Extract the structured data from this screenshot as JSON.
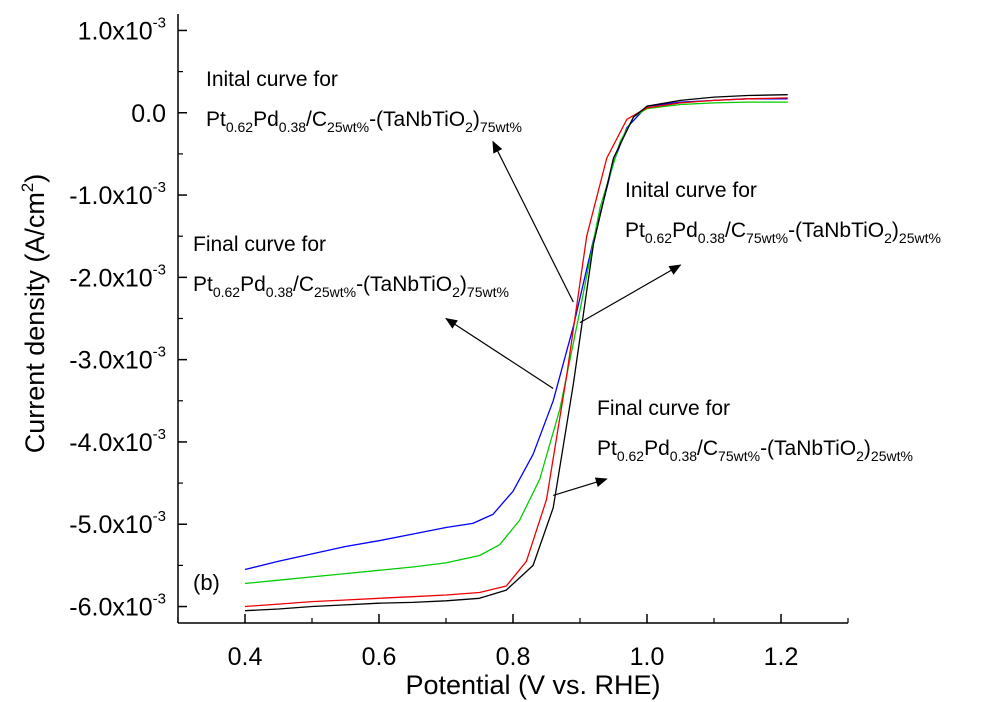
{
  "chart_data": {
    "type": "line",
    "title": "",
    "panel_label": "(b)",
    "xlabel": "Potential (V vs. RHE)",
    "ylabel": "Current density (A/cm²)",
    "ylabel_parts": {
      "base": "Current density (A/cm",
      "sup": "2",
      "tail": ")"
    },
    "xlim": [
      0.3,
      1.3
    ],
    "ylim": [
      -6.2,
      1.2
    ],
    "y_unit_exponent": -3,
    "x_ticks": [
      {
        "value": 0.4,
        "label": "0.4"
      },
      {
        "value": 0.6,
        "label": "0.6"
      },
      {
        "value": 0.8,
        "label": "0.8"
      },
      {
        "value": 1.0,
        "label": "1.0"
      },
      {
        "value": 1.2,
        "label": "1.2"
      }
    ],
    "y_ticks": [
      {
        "value": 1.0,
        "label": "1.0x10",
        "exp": "-3"
      },
      {
        "value": 0.0,
        "label": "0.0",
        "exp": ""
      },
      {
        "value": -1.0,
        "label": "-1.0x10",
        "exp": "-3"
      },
      {
        "value": -2.0,
        "label": "-2.0x10",
        "exp": "-3"
      },
      {
        "value": -3.0,
        "label": "-3.0x10",
        "exp": "-3"
      },
      {
        "value": -4.0,
        "label": "-4.0x10",
        "exp": "-3"
      },
      {
        "value": -5.0,
        "label": "-5.0x10",
        "exp": "-3"
      },
      {
        "value": -6.0,
        "label": "-6.0x10",
        "exp": "-3"
      }
    ],
    "grid": false,
    "legend": "none",
    "series": [
      {
        "color": "#0000ff",
        "x": [
          0.4,
          0.45,
          0.5,
          0.55,
          0.6,
          0.65,
          0.7,
          0.74,
          0.77,
          0.8,
          0.83,
          0.86,
          0.89,
          0.92,
          0.95,
          0.97,
          1.0,
          1.05,
          1.1,
          1.15,
          1.21
        ],
        "y": [
          -5.55,
          -5.45,
          -5.36,
          -5.27,
          -5.2,
          -5.12,
          -5.04,
          -4.99,
          -4.88,
          -4.6,
          -4.15,
          -3.5,
          -2.6,
          -1.55,
          -0.6,
          -0.18,
          0.08,
          0.13,
          0.15,
          0.17,
          0.17
        ]
      },
      {
        "color": "#00cc00",
        "x": [
          0.4,
          0.45,
          0.5,
          0.55,
          0.6,
          0.65,
          0.7,
          0.75,
          0.78,
          0.81,
          0.84,
          0.87,
          0.9,
          0.93,
          0.96,
          0.98,
          1.0,
          1.05,
          1.1,
          1.15,
          1.21
        ],
        "y": [
          -5.72,
          -5.68,
          -5.64,
          -5.6,
          -5.56,
          -5.52,
          -5.47,
          -5.38,
          -5.25,
          -4.95,
          -4.45,
          -3.6,
          -2.4,
          -1.15,
          -0.35,
          -0.05,
          0.05,
          0.1,
          0.12,
          0.13,
          0.13
        ]
      },
      {
        "color": "#ee0000",
        "x": [
          0.4,
          0.45,
          0.5,
          0.55,
          0.6,
          0.65,
          0.7,
          0.75,
          0.79,
          0.82,
          0.85,
          0.88,
          0.91,
          0.94,
          0.97,
          1.0,
          1.05,
          1.1,
          1.15,
          1.21
        ],
        "y": [
          -6.0,
          -5.97,
          -5.94,
          -5.92,
          -5.9,
          -5.88,
          -5.86,
          -5.83,
          -5.75,
          -5.45,
          -4.7,
          -3.2,
          -1.5,
          -0.55,
          -0.08,
          0.06,
          0.12,
          0.15,
          0.17,
          0.18
        ]
      },
      {
        "color": "#000000",
        "x": [
          0.4,
          0.45,
          0.5,
          0.55,
          0.6,
          0.65,
          0.7,
          0.75,
          0.79,
          0.83,
          0.86,
          0.89,
          0.92,
          0.95,
          0.98,
          1.0,
          1.05,
          1.1,
          1.15,
          1.21
        ],
        "y": [
          -6.05,
          -6.03,
          -6.0,
          -5.98,
          -5.96,
          -5.95,
          -5.93,
          -5.9,
          -5.8,
          -5.5,
          -4.8,
          -3.3,
          -1.6,
          -0.55,
          -0.05,
          0.08,
          0.15,
          0.19,
          0.21,
          0.22
        ]
      }
    ],
    "annotations": [
      {
        "line1": "Inital curve for",
        "formula": [
          {
            "t": "Pt"
          },
          {
            "t": "0.62",
            "s": "sub"
          },
          {
            "t": "Pd"
          },
          {
            "t": "0.38",
            "s": "sub"
          },
          {
            "t": "/C"
          },
          {
            "t": "25wt%",
            "s": "sub"
          },
          {
            "t": "-(TaNbTiO"
          },
          {
            "t": "2",
            "s": "sub"
          },
          {
            "t": ")"
          },
          {
            "t": "75wt%",
            "s": "sub"
          }
        ],
        "arrow_from": [
          0.89,
          -2.3
        ],
        "arrow_to": [
          0.77,
          -0.35
        ]
      },
      {
        "line1": "Inital curve for",
        "formula": [
          {
            "t": "Pt"
          },
          {
            "t": "0.62",
            "s": "sub"
          },
          {
            "t": "Pd"
          },
          {
            "t": "0.38",
            "s": "sub"
          },
          {
            "t": "/C"
          },
          {
            "t": "75wt%",
            "s": "sub"
          },
          {
            "t": "-(TaNbTiO"
          },
          {
            "t": "2",
            "s": "sub"
          },
          {
            "t": ")"
          },
          {
            "t": "25wt%",
            "s": "sub"
          }
        ],
        "arrow_from": [
          0.9,
          -2.55
        ],
        "arrow_to": [
          1.05,
          -1.85
        ]
      },
      {
        "line1": "Final curve for",
        "formula": [
          {
            "t": "Pt"
          },
          {
            "t": "0.62",
            "s": "sub"
          },
          {
            "t": "Pd"
          },
          {
            "t": "0.38",
            "s": "sub"
          },
          {
            "t": "/C"
          },
          {
            "t": "25wt%",
            "s": "sub"
          },
          {
            "t": "-(TaNbTiO"
          },
          {
            "t": "2",
            "s": "sub"
          },
          {
            "t": ")"
          },
          {
            "t": "75wt%",
            "s": "sub"
          }
        ],
        "arrow_from": [
          0.86,
          -3.35
        ],
        "arrow_to": [
          0.7,
          -2.5
        ]
      },
      {
        "line1": "Final curve for",
        "formula": [
          {
            "t": "Pt"
          },
          {
            "t": "0.62",
            "s": "sub"
          },
          {
            "t": "Pd"
          },
          {
            "t": "0.38",
            "s": "sub"
          },
          {
            "t": "/C"
          },
          {
            "t": "75wt%",
            "s": "sub"
          },
          {
            "t": "-(TaNbTiO"
          },
          {
            "t": "2",
            "s": "sub"
          },
          {
            "t": ")"
          },
          {
            "t": "25wt%",
            "s": "sub"
          }
        ],
        "arrow_from": [
          0.86,
          -4.65
        ],
        "arrow_to": [
          0.94,
          -4.45
        ]
      }
    ]
  }
}
